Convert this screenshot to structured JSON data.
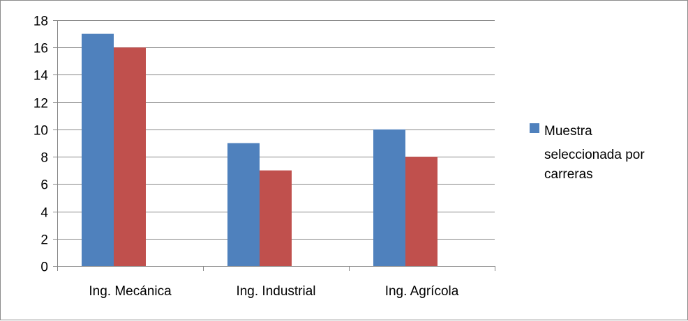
{
  "chart_data": {
    "type": "bar",
    "title": "",
    "xlabel": "",
    "ylabel": "",
    "categories": [
      "Ing. Mecánica",
      "Ing. Industrial",
      "Ing. Agrícola"
    ],
    "series": [
      {
        "name": "Muestra seleccionada por carreras",
        "color": "#4f81bd",
        "values": [
          17,
          9,
          10
        ]
      },
      {
        "name": "",
        "color": "#c0504d",
        "values": [
          16,
          7,
          8
        ]
      }
    ],
    "ylim": [
      0,
      18
    ],
    "yticks": [
      "0",
      "2",
      "4",
      "6",
      "8",
      "10",
      "12",
      "14",
      "16",
      "18"
    ],
    "grid": true,
    "legend": {
      "position": "right",
      "lines": [
        "Muestra",
        "seleccionada por",
        "carreras"
      ]
    }
  }
}
